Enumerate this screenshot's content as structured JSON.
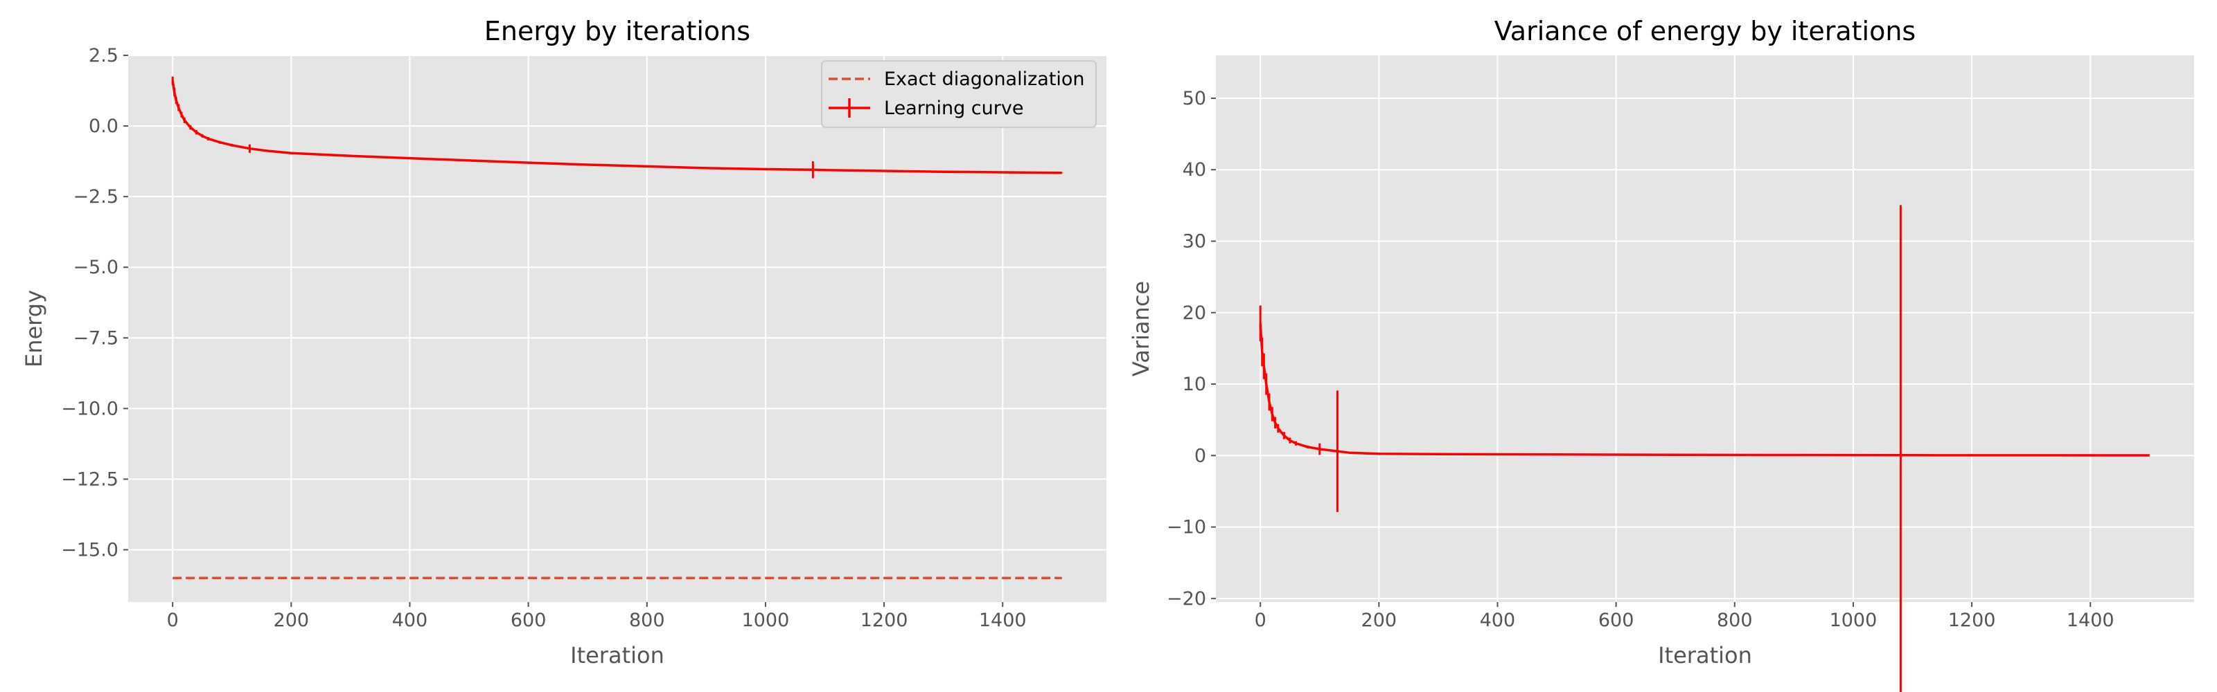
{
  "chart_data": [
    {
      "type": "line",
      "title": "Energy by iterations",
      "xlabel": "Iteration",
      "ylabel": "Energy",
      "xlim": [
        -75,
        1575
      ],
      "ylim": [
        -16.85,
        2.5
      ],
      "xticks": [
        0,
        200,
        400,
        600,
        800,
        1000,
        1200,
        1400
      ],
      "xtick_labels": [
        "0",
        "200",
        "400",
        "600",
        "800",
        "1000",
        "1200",
        "1400"
      ],
      "yticks": [
        2.5,
        0.0,
        -2.5,
        -5.0,
        -7.5,
        -10.0,
        -12.5,
        -15.0
      ],
      "ytick_labels": [
        "2.5",
        "0.0",
        "−2.5",
        "−5.0",
        "−7.5",
        "−10.0",
        "−12.5",
        "−15.0"
      ],
      "grid": true,
      "legend_position": "top-right",
      "series": [
        {
          "name": "Exact diagonalization",
          "style": "dashed",
          "color": "#e24a33",
          "x": [
            0,
            1500
          ],
          "y": [
            -16.0,
            -16.0
          ]
        },
        {
          "name": "Learning curve",
          "style": "solid-errorbar",
          "color": "#ff0000",
          "x": [
            0,
            3,
            6,
            10,
            15,
            20,
            30,
            40,
            50,
            60,
            80,
            100,
            130,
            160,
            200,
            300,
            400,
            500,
            600,
            700,
            800,
            900,
            1000,
            1080,
            1100,
            1200,
            1300,
            1400,
            1500
          ],
          "y": [
            1.6,
            1.2,
            0.9,
            0.65,
            0.4,
            0.2,
            -0.05,
            -0.22,
            -0.35,
            -0.45,
            -0.58,
            -0.68,
            -0.8,
            -0.88,
            -0.96,
            -1.06,
            -1.14,
            -1.22,
            -1.3,
            -1.37,
            -1.43,
            -1.49,
            -1.53,
            -1.55,
            -1.56,
            -1.59,
            -1.62,
            -1.64,
            -1.66
          ],
          "err": [
            0.15,
            0.15,
            0.12,
            0.12,
            0.1,
            0.1,
            0.08,
            0.08,
            0.06,
            0.06,
            0.05,
            0.05,
            0.15,
            0.03,
            0.02,
            0.01,
            0.01,
            0.01,
            0.01,
            0.01,
            0.01,
            0.01,
            0.01,
            0.3,
            0.01,
            0.01,
            0.01,
            0.01,
            0.01
          ]
        }
      ]
    },
    {
      "type": "line",
      "title": "Variance of energy by iterations",
      "xlabel": "Iteration",
      "ylabel": "Variance",
      "xlim": [
        -75,
        1575
      ],
      "ylim": [
        -20.5,
        56.0
      ],
      "xticks": [
        0,
        200,
        400,
        600,
        800,
        1000,
        1200,
        1400
      ],
      "xtick_labels": [
        "0",
        "200",
        "400",
        "600",
        "800",
        "1000",
        "1200",
        "1400"
      ],
      "yticks": [
        50,
        40,
        30,
        20,
        10,
        0,
        -10,
        -20
      ],
      "ytick_labels": [
        "50",
        "40",
        "30",
        "20",
        "10",
        "0",
        "−10",
        "−20"
      ],
      "grid": true,
      "series": [
        {
          "style": "solid-errorbar",
          "color": "#ff0000",
          "x": [
            0,
            3,
            6,
            10,
            15,
            20,
            25,
            30,
            40,
            50,
            60,
            80,
            100,
            130,
            150,
            200,
            300,
            500,
            700,
            900,
            1080,
            1100,
            1300,
            1500
          ],
          "y": [
            18.5,
            14.5,
            12.5,
            10.0,
            7.5,
            5.8,
            4.6,
            3.8,
            2.8,
            2.1,
            1.7,
            1.2,
            0.9,
            0.6,
            0.4,
            0.25,
            0.2,
            0.15,
            0.1,
            0.08,
            0.05,
            0.05,
            0.04,
            0.03
          ],
          "err": [
            2.5,
            2.0,
            1.8,
            1.5,
            1.2,
            1.0,
            0.8,
            0.6,
            0.5,
            0.4,
            0.3,
            0.2,
            0.8,
            8.5,
            0.05,
            0.02,
            0.01,
            0.01,
            0.01,
            0.01,
            35.0,
            0.01,
            0.01,
            0.01
          ]
        }
      ]
    }
  ]
}
